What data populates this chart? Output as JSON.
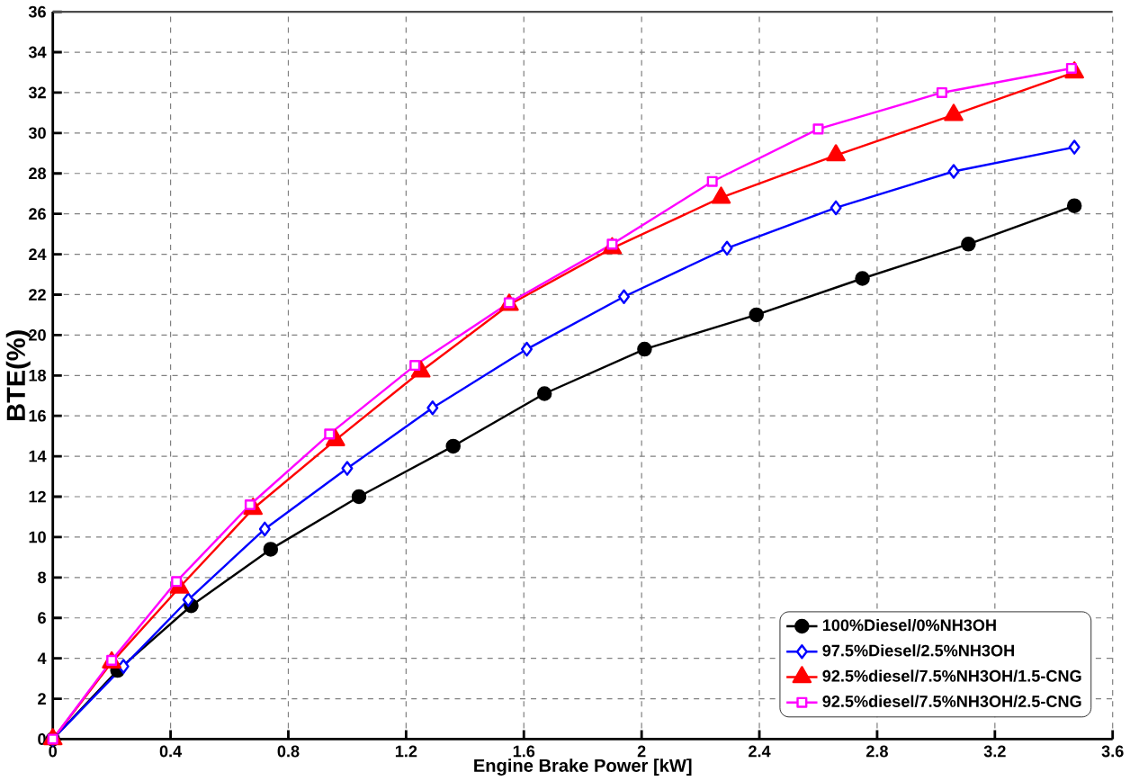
{
  "chart_data": {
    "type": "line",
    "xlabel": "Engine Brake Power [kW]",
    "ylabel": "BTE(%)",
    "xlim": [
      0,
      3.6
    ],
    "ylim": [
      0,
      36
    ],
    "xticks": [
      0,
      0.4,
      0.8,
      1.2,
      1.6,
      2,
      2.4,
      2.8,
      3.2,
      3.6
    ],
    "yticks": [
      0,
      2,
      4,
      6,
      8,
      10,
      12,
      14,
      16,
      18,
      20,
      22,
      24,
      26,
      28,
      30,
      32,
      34,
      36
    ],
    "grid": true,
    "legend": "bottom right",
    "series": [
      {
        "name": "100%Diesel/0%NH3OH",
        "color": "#000000",
        "marker": "circle",
        "x": [
          0,
          0.22,
          0.47,
          0.74,
          1.04,
          1.36,
          1.67,
          2.01,
          2.39,
          2.75,
          3.11,
          3.47
        ],
        "values": [
          0,
          3.4,
          6.6,
          9.4,
          12.0,
          14.5,
          17.1,
          19.3,
          21.0,
          22.8,
          24.5,
          26.4
        ]
      },
      {
        "name": "97.5%Diesel/2.5%NH3OH",
        "color": "#0000ff",
        "marker": "diamond",
        "x": [
          0,
          0.24,
          0.46,
          0.72,
          1.0,
          1.29,
          1.61,
          1.94,
          2.29,
          2.66,
          3.06,
          3.47
        ],
        "values": [
          0,
          3.6,
          6.9,
          10.4,
          13.4,
          16.4,
          19.3,
          21.9,
          24.3,
          26.3,
          28.1,
          29.3
        ]
      },
      {
        "name": "92.5%diesel/7.5%NH3OH/1.5-CNG",
        "color": "#ff0000",
        "marker": "triangle",
        "x": [
          0,
          0.2,
          0.43,
          0.68,
          0.96,
          1.25,
          1.55,
          1.9,
          2.27,
          2.66,
          3.06,
          3.47
        ],
        "values": [
          0,
          3.8,
          7.5,
          11.4,
          14.8,
          18.2,
          21.5,
          24.3,
          26.8,
          28.9,
          30.9,
          33.0
        ]
      },
      {
        "name": "92.5%diesel/7.5%NH3OH/2.5-CNG",
        "color": "#ff00ff",
        "marker": "square",
        "x": [
          0,
          0.2,
          0.42,
          0.67,
          0.94,
          1.23,
          1.55,
          1.9,
          2.24,
          2.6,
          3.02,
          3.46
        ],
        "values": [
          0,
          3.9,
          7.8,
          11.6,
          15.1,
          18.5,
          21.6,
          24.5,
          27.6,
          30.2,
          32.0,
          33.2
        ]
      }
    ]
  }
}
